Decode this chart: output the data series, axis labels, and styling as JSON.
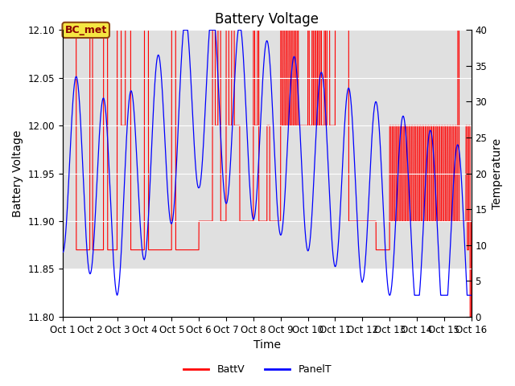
{
  "title": "Battery Voltage",
  "xlabel": "Time",
  "ylabel_left": "Battery Voltage",
  "ylabel_right": "Temperature",
  "ylim_left": [
    11.8,
    12.1
  ],
  "ylim_right": [
    0,
    40
  ],
  "xlim": [
    0,
    15
  ],
  "xtick_labels": [
    "Oct 1",
    "Oct 2",
    "Oct 3",
    "Oct 4",
    "Oct 5",
    "Oct 6",
    "Oct 7",
    "Oct 8",
    "Oct 9",
    "Oct 10",
    "Oct 11",
    "Oct 12",
    "Oct 13",
    "Oct 14",
    "Oct 15",
    "Oct 16"
  ],
  "xtick_positions": [
    0,
    1,
    2,
    3,
    4,
    5,
    6,
    7,
    8,
    9,
    10,
    11,
    12,
    13,
    14,
    15
  ],
  "annotation_text": "BC_met",
  "legend_labels": [
    "BattV",
    "PanelT"
  ],
  "bg_gray_color": "#e0e0e0",
  "title_fontsize": 12,
  "axis_label_fontsize": 10,
  "tick_fontsize": 8.5
}
